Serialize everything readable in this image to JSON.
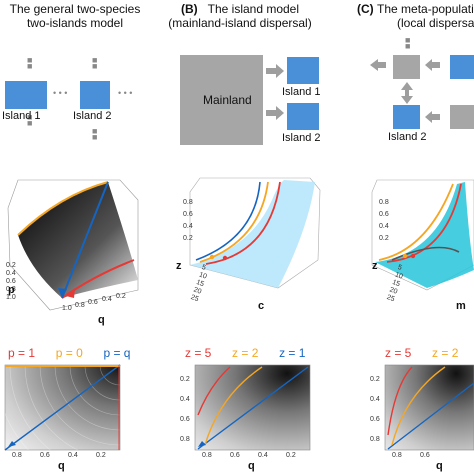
{
  "panelA": {
    "title_line1": "The general two-species",
    "title_line2": "two-islands model",
    "island1": "Island 1",
    "island2": "Island 2",
    "ellipsis": "• • •",
    "axis_p": "p",
    "axis_q": "q",
    "ticks_p": [
      "0.2",
      "0.4",
      "0.6",
      "0.8",
      "1.0"
    ],
    "ticks_q": [
      "1.0",
      "0.8",
      "0.6",
      "0.4",
      "0.2"
    ],
    "legend": [
      {
        "text": "p = 1",
        "color": "#e53935"
      },
      {
        "text": "p = 0",
        "color": "#f5a623"
      },
      {
        "text": "p = q",
        "color": "#1565c0"
      }
    ],
    "bottom_ticks_x": [
      "0.8",
      "0.6",
      "0.4",
      "0.2"
    ],
    "bottom_axis": "q"
  },
  "panelB": {
    "letter": "(B)",
    "title_line1": "The island model",
    "title_line2": "(mainland-island dispersal)",
    "mainland": "Mainland",
    "island1": "Island 1",
    "island2": "Island 2",
    "axis_z": "z",
    "axis_c": "c",
    "ticks_z": [
      "0.8",
      "0.6",
      "0.4",
      "0.2"
    ],
    "ticks_depth": [
      "5",
      "10",
      "15",
      "20",
      "25"
    ],
    "legend": [
      {
        "text": "z = 5",
        "color": "#e53935"
      },
      {
        "text": "z = 2",
        "color": "#f5a623"
      },
      {
        "text": "z = 1",
        "color": "#1565c0"
      }
    ],
    "bottom_ticks_y": [
      "0.2",
      "0.4",
      "0.6",
      "0.8"
    ],
    "bottom_ticks_x": [
      "0.8",
      "0.6",
      "0.4",
      "0.2"
    ],
    "bottom_axis": "q"
  },
  "panelC": {
    "letter": "(C)",
    "title_line1": "The meta-population",
    "title_line2": "(local dispersal",
    "island2": "Island 2",
    "axis_z": "z",
    "axis_m": "m",
    "ticks_z": [
      "0.8",
      "0.6",
      "0.4",
      "0.2"
    ],
    "ticks_depth": [
      "5",
      "10",
      "15",
      "20",
      "25"
    ],
    "legend": [
      {
        "text": "z = 5",
        "color": "#e53935"
      },
      {
        "text": "z = 2",
        "color": "#f5a623"
      }
    ],
    "bottom_ticks_y": [
      "0.2",
      "0.4",
      "0.6",
      "0.8"
    ],
    "bottom_ticks_x": [
      "0.8",
      "0.6"
    ],
    "bottom_axis": "q"
  },
  "colors": {
    "island": "#4a90d9",
    "mainland": "#a6a6a6",
    "arrow": "#9e9e9e",
    "surface": "#b3e5fc"
  }
}
